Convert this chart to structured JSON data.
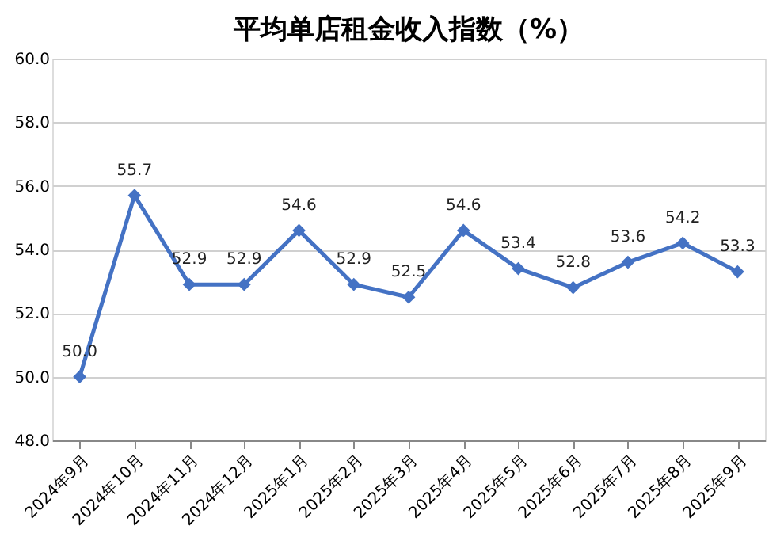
{
  "chart_data": {
    "type": "line",
    "title": "平均单店租金收入指数（%）",
    "categories": [
      "2024年9月",
      "2024年10月",
      "2024年11月",
      "2024年12月",
      "2025年1月",
      "2025年2月",
      "2025年3月",
      "2025年4月",
      "2025年5月",
      "2025年6月",
      "2025年7月",
      "2025年8月",
      "2025年9月"
    ],
    "series": [
      {
        "color": "#4472c4",
        "values": [
          50.0,
          55.7,
          52.9,
          52.9,
          54.6,
          52.9,
          52.5,
          54.6,
          53.4,
          52.8,
          53.6,
          54.2,
          53.3
        ],
        "value_labels": [
          "50.0",
          "55.7",
          "52.9",
          "52.9",
          "54.6",
          "52.9",
          "52.5",
          "54.6",
          "53.4",
          "52.8",
          "53.6",
          "54.2",
          "53.3"
        ]
      }
    ],
    "ylim": [
      48,
      60
    ],
    "yticks": [
      {
        "value": 48,
        "label": "48.0"
      },
      {
        "value": 50,
        "label": "50.0"
      },
      {
        "value": 52,
        "label": "52.0"
      },
      {
        "value": 54,
        "label": "54.0"
      },
      {
        "value": 56,
        "label": "56.0"
      },
      {
        "value": 58,
        "label": "58.0"
      },
      {
        "value": 60,
        "label": "60.0"
      }
    ],
    "grid": "y",
    "marker": "diamond",
    "line_style": "solid"
  }
}
